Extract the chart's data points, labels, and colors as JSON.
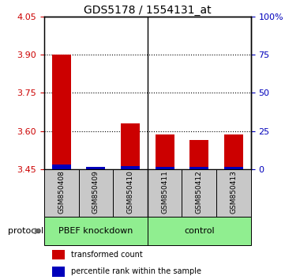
{
  "title": "GDS5178 / 1554131_at",
  "samples": [
    "GSM850408",
    "GSM850409",
    "GSM850410",
    "GSM850411",
    "GSM850412",
    "GSM850413"
  ],
  "red_values": [
    3.9,
    3.455,
    3.63,
    3.585,
    3.565,
    3.585
  ],
  "blue_values": [
    0.018,
    0.008,
    0.012,
    0.01,
    0.01,
    0.01
  ],
  "y_min": 3.45,
  "y_max": 4.05,
  "y_ticks": [
    3.45,
    3.6,
    3.75,
    3.9,
    4.05
  ],
  "right_y_ticks": [
    0,
    25,
    50,
    75,
    100
  ],
  "right_y_labels": [
    "0",
    "25",
    "50",
    "75",
    "100%"
  ],
  "dotted_lines": [
    3.9,
    3.75,
    3.6
  ],
  "groups": [
    {
      "label": "PBEF knockdown",
      "indices": [
        0,
        1,
        2
      ]
    },
    {
      "label": "control",
      "indices": [
        3,
        4,
        5
      ]
    }
  ],
  "protocol_label": "protocol",
  "red_color": "#CC0000",
  "blue_color": "#0000BB",
  "left_axis_color": "#CC0000",
  "right_axis_color": "#0000BB",
  "sample_bg_color": "#C8C8C8",
  "group_bg_color": "#90EE90",
  "legend_red": "transformed count",
  "legend_blue": "percentile rank within the sample"
}
